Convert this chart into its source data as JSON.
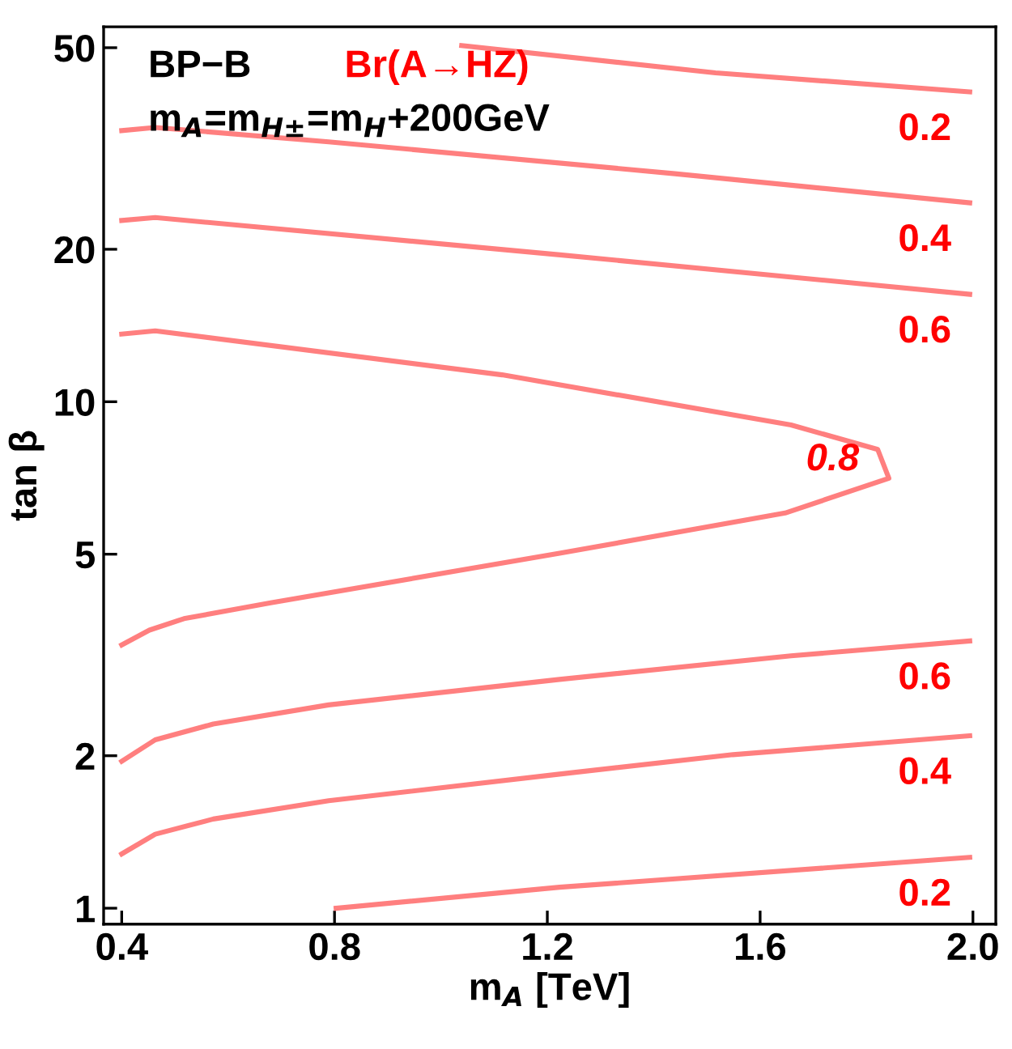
{
  "chart_data": {
    "type": "line",
    "xlabel": "m$_{A}$ [TeV]",
    "ylabel": "tan β",
    "log": "y",
    "xlim": [
      0.366,
      2.043
    ],
    "ylim": [
      0.93,
      55
    ],
    "xticks": [
      {
        "value": 0.4,
        "label": "0.4"
      },
      {
        "value": 0.8,
        "label": "0.8"
      },
      {
        "value": 1.2,
        "label": "1.2"
      },
      {
        "value": 1.6,
        "label": "1.6"
      },
      {
        "value": 2.0,
        "label": "2.0"
      }
    ],
    "yticks": [
      1,
      2,
      5,
      10,
      20,
      50
    ],
    "grid": false,
    "line_style": "solid",
    "series": [
      {
        "name": "0.2",
        "color": "#ff7f7f",
        "x": [
          1.039,
          1.516,
          1.994
        ],
        "values": [
          50.5,
          44.6,
          40.9
        ]
      },
      {
        "name": "0.4",
        "color": "#ff7f7f",
        "x": [
          0.4,
          0.463,
          0.789,
          1.44,
          1.994
        ],
        "values": [
          34.3,
          34.8,
          32.6,
          28.2,
          24.7
        ]
      },
      {
        "name": "0.6",
        "color": "#ff7f7f",
        "x": [
          0.4,
          0.463,
          1.224,
          1.994
        ],
        "values": [
          22.8,
          23.1,
          19.5,
          16.3
        ]
      },
      {
        "name": "0.8",
        "color": "#ff7f7f",
        "x": [
          0.4,
          0.463,
          1.115,
          1.658,
          1.821,
          1.842,
          1.647,
          1.223,
          0.68,
          0.517,
          0.452,
          0.4
        ],
        "values": [
          13.6,
          13.8,
          11.3,
          9.0,
          8.05,
          7.06,
          6.03,
          5.02,
          4.01,
          3.73,
          3.54,
          3.31
        ]
      },
      {
        "name": "0.6",
        "color": "#ff7f7f",
        "x": [
          0.4,
          0.463,
          0.572,
          0.789,
          1.223,
          1.658,
          1.994
        ],
        "values": [
          1.95,
          2.15,
          2.31,
          2.52,
          2.83,
          3.15,
          3.37
        ]
      },
      {
        "name": "0.4",
        "color": "#ff7f7f",
        "x": [
          0.4,
          0.463,
          0.572,
          0.789,
          1.223,
          1.549,
          1.994
        ],
        "values": [
          1.28,
          1.4,
          1.5,
          1.63,
          1.84,
          2.01,
          2.19
        ]
      },
      {
        "name": "0.2",
        "color": "#ff7f7f",
        "x": [
          0.803,
          1.223,
          1.994
        ],
        "values": [
          1.0,
          1.1,
          1.26
        ]
      }
    ],
    "annotations": [
      "BP−B",
      "Br(A→HZ)",
      "m$_{A}$=m$_{H±}$=m$_{H}$+200GeV"
    ]
  }
}
